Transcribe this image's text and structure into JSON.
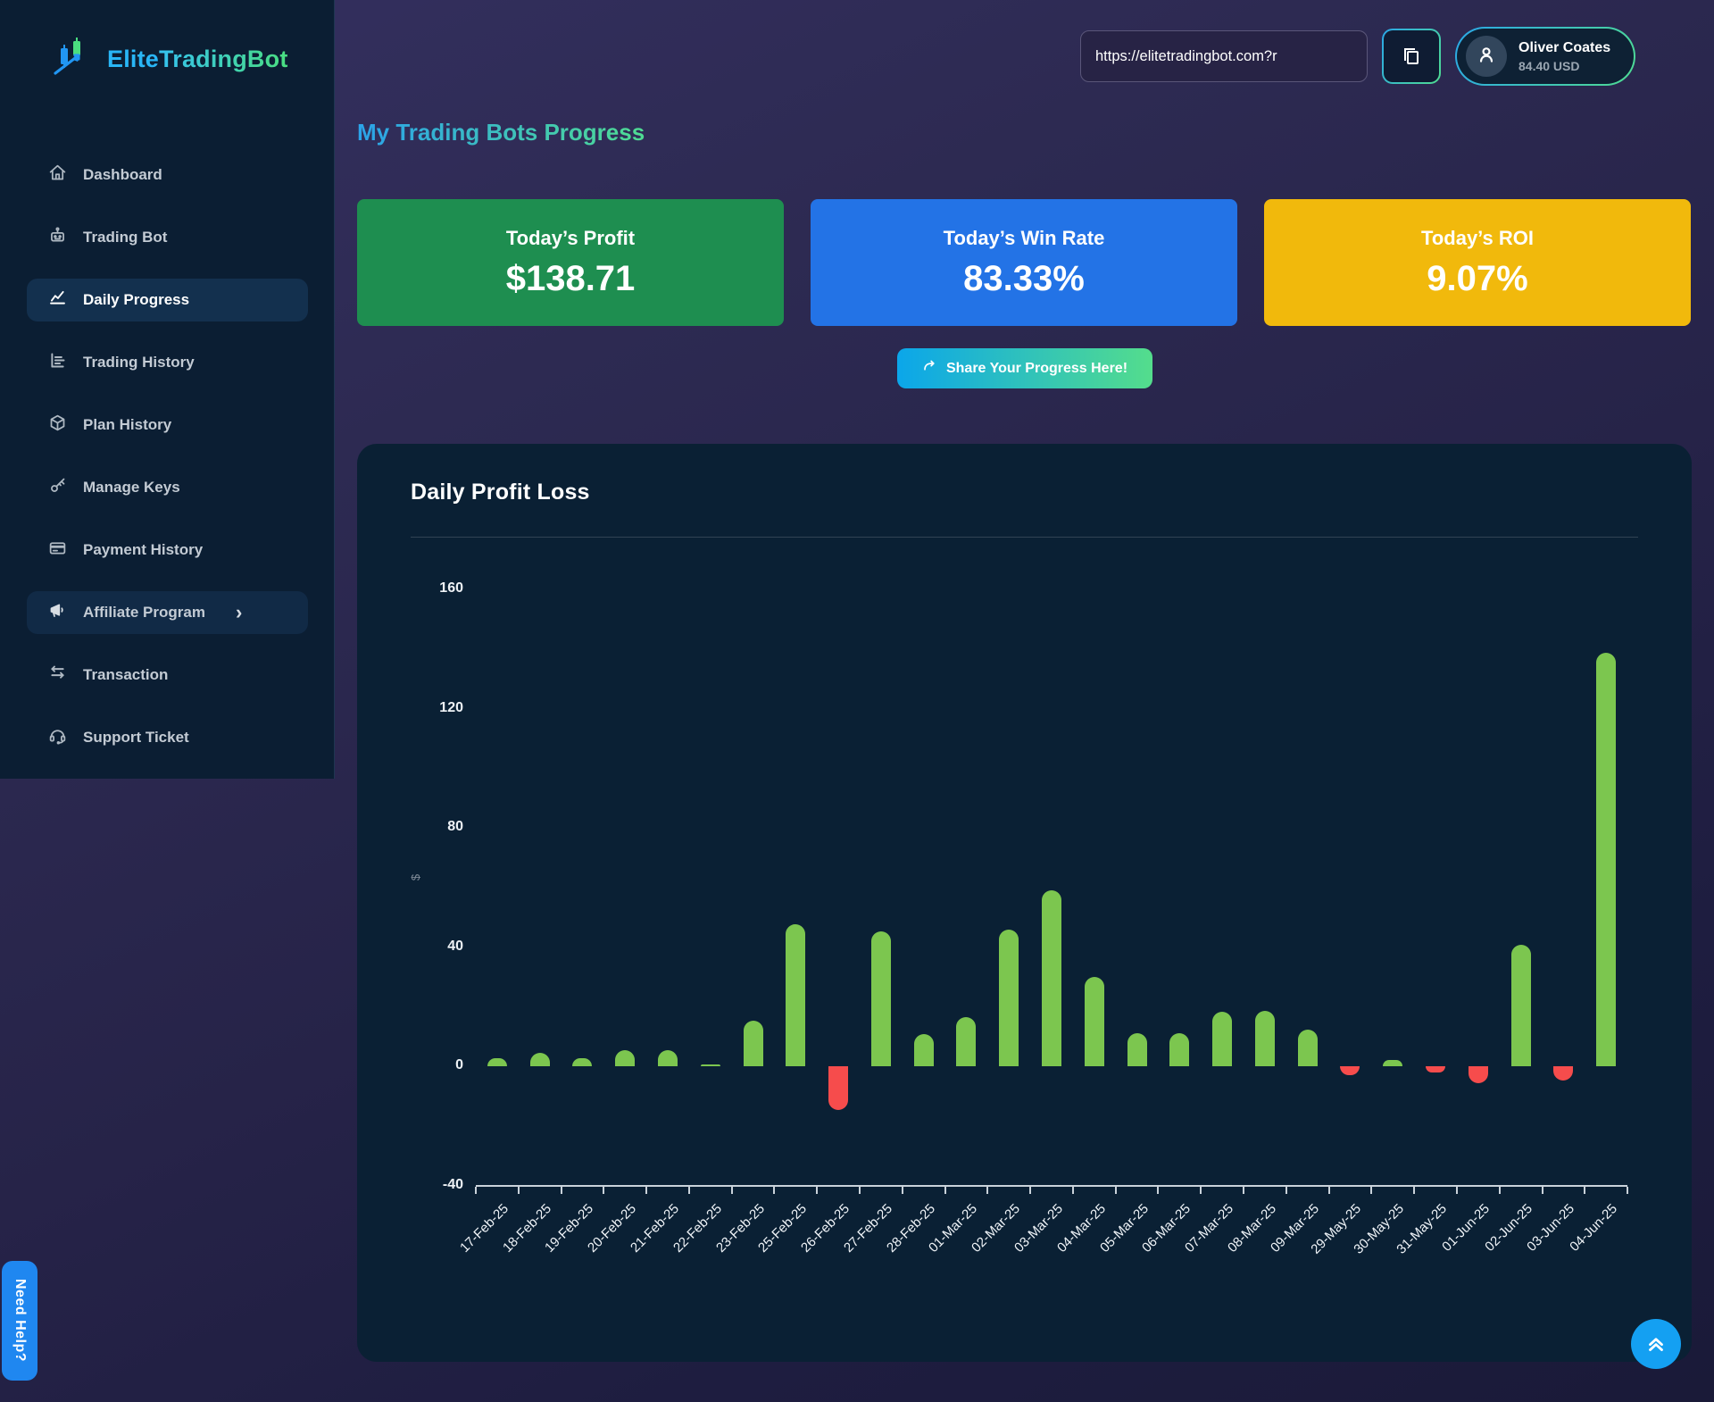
{
  "app": {
    "brand_first": "Elite",
    "brand_rest": "TradingBot"
  },
  "header": {
    "url_value": "https://elitetradingbot.com?r",
    "copy_icon": "copy-icon",
    "user_name": "Oliver Coates",
    "user_balance": "84.40 USD"
  },
  "sidebar": {
    "items": [
      {
        "label": "Dashboard",
        "icon": "home-icon",
        "active": false
      },
      {
        "label": "Trading Bot",
        "icon": "robot-icon",
        "active": false
      },
      {
        "label": "Daily Progress",
        "icon": "line-chart-icon",
        "active": true
      },
      {
        "label": "Trading History",
        "icon": "bar-chart-icon",
        "active": false
      },
      {
        "label": "Plan History",
        "icon": "cube-icon",
        "active": false
      },
      {
        "label": "Manage Keys",
        "icon": "key-icon",
        "active": false
      },
      {
        "label": "Payment History",
        "icon": "credit-card-icon",
        "active": false
      },
      {
        "label": "Affiliate Program",
        "icon": "megaphone-icon",
        "active": false,
        "chevron": "›",
        "highlighted": true
      },
      {
        "label": "Transaction",
        "icon": "transfer-icon",
        "active": false
      },
      {
        "label": "Support Ticket",
        "icon": "headset-icon",
        "active": false
      }
    ]
  },
  "page_title": "My Trading Bots Progress",
  "stat_cards": [
    {
      "label": "Today’s Profit",
      "value": "$138.71",
      "color": "#1e8e50"
    },
    {
      "label": "Today’s Win Rate",
      "value": "83.33%",
      "color": "#2373e6"
    },
    {
      "label": "Today’s ROI",
      "value": "9.07%",
      "color": "#f1b90c"
    }
  ],
  "share_button": {
    "label": "Share Your Progress Here!",
    "icon": "share-icon"
  },
  "need_help_label": "Need Help?",
  "colors": {
    "accent_blue": "#29b6f6",
    "accent_green": "#4ade80",
    "sidebar_bg": "#0b1e33",
    "chart_card_bg": "#0a2034",
    "need_help_bg": "#1f87f0",
    "scroll_top_bg": "#14a0f2"
  },
  "chart_data": {
    "type": "bar",
    "title": "Daily Profit Loss",
    "xlabel": "",
    "ylabel": "$",
    "ylim": [
      -40,
      160
    ],
    "yticks": [
      160,
      120,
      80,
      40,
      0,
      -40
    ],
    "grid": false,
    "legend": false,
    "positive_color": "#7cc64f",
    "negative_color": "#f64c4c",
    "categories": [
      "17-Feb-25",
      "18-Feb-25",
      "19-Feb-25",
      "20-Feb-25",
      "21-Feb-25",
      "22-Feb-25",
      "23-Feb-25",
      "25-Feb-25",
      "26-Feb-25",
      "27-Feb-25",
      "28-Feb-25",
      "01-Mar-25",
      "02-Mar-25",
      "03-Mar-25",
      "04-Mar-25",
      "05-Mar-25",
      "06-Mar-25",
      "07-Mar-25",
      "08-Mar-25",
      "09-Mar-25",
      "29-May-25",
      "30-May-25",
      "31-May-25",
      "01-Jun-25",
      "02-Jun-25",
      "03-Jun-25",
      "04-Jun-25"
    ],
    "values": [
      2.7,
      4.4,
      2.7,
      5.4,
      5.4,
      0.5,
      15.4,
      47.5,
      -14.6,
      45.1,
      10.9,
      16.6,
      45.8,
      59.1,
      30,
      11,
      11.2,
      18.4,
      18.6,
      12.3,
      -3,
      2,
      -2,
      -5.8,
      40.7,
      -4.8,
      138.71
    ]
  }
}
